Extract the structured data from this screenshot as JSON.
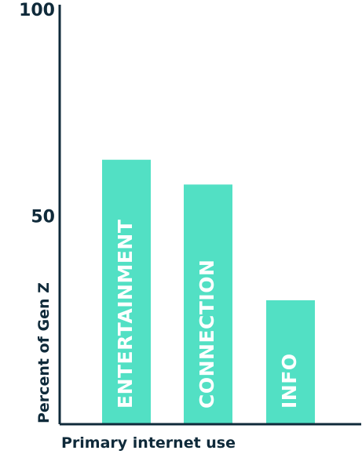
{
  "chart_data": {
    "type": "bar",
    "categories": [
      "ENTERTAINMENT",
      "CONNECTION",
      "INFO"
    ],
    "values": [
      64,
      58,
      30
    ],
    "title": "",
    "xlabel": "Primary internet use",
    "ylabel": "Percent of Gen Z",
    "ylim": [
      0,
      100
    ],
    "yticks": [
      50,
      100
    ],
    "grid": false,
    "bar_color": "#52e0c4",
    "axis_color": "#0f2a3a"
  }
}
